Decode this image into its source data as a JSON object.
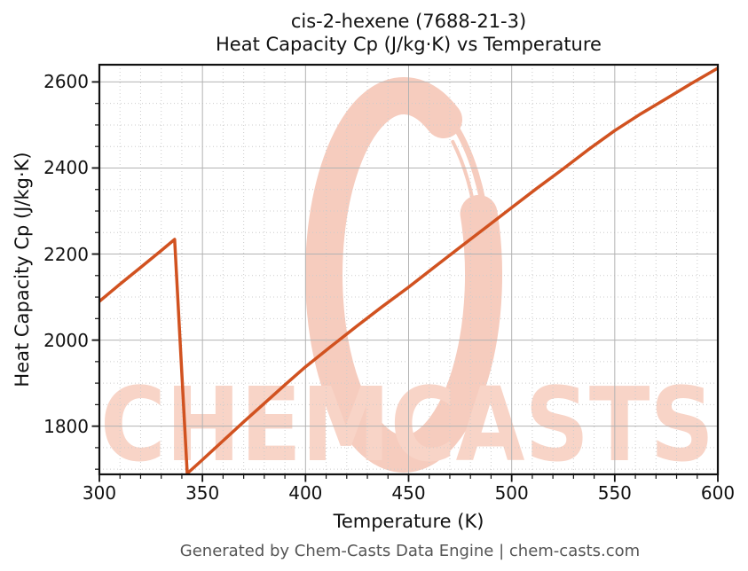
{
  "title": {
    "line1": "cis-2-hexene (7688-21-3)",
    "line2": "Heat Capacity Cp (J/kg·K) vs Temperature"
  },
  "footer": {
    "text": "Generated by Chem-Casts Data Engine | chem-casts.com"
  },
  "watermark": {
    "text": "CHEMCASTS",
    "logo": "paint-stroke-ring-c",
    "text_color": "#f8d4c7",
    "ring_color": "#f6ccbe"
  },
  "colors": {
    "line": "#d15220",
    "grid_major": "#b3b3b3",
    "grid_minor": "#cccccc",
    "spine": "#111111",
    "tick": "#111111",
    "footer_text": "#555555"
  },
  "chart_data": {
    "type": "line",
    "title": "cis-2-hexene (7688-21-3)",
    "subtitle": "Heat Capacity Cp (J/kg·K) vs Temperature",
    "xlabel": "Temperature (K)",
    "ylabel": "Heat Capacity Cp (J/kg·K)",
    "xlim": [
      300,
      600
    ],
    "ylim": [
      1688,
      2640
    ],
    "x_major_ticks": [
      300,
      350,
      400,
      450,
      500,
      550,
      600
    ],
    "x_minor_step": 10,
    "y_major_ticks": [
      1800,
      2000,
      2200,
      2400,
      2600
    ],
    "y_minor_step": 50,
    "grid": "major solid, minor dotted",
    "legend_position": "none",
    "series": [
      {
        "name": "Heat Capacity Cp (J/kg·K)",
        "color": "#d15220",
        "points": [
          [
            300,
            2090
          ],
          [
            310,
            2130
          ],
          [
            320,
            2169
          ],
          [
            330,
            2208
          ],
          [
            336.5,
            2234
          ],
          [
            342.6,
            1690
          ],
          [
            350,
            1722
          ],
          [
            360,
            1766
          ],
          [
            370,
            1810
          ],
          [
            380,
            1853
          ],
          [
            390,
            1896
          ],
          [
            400,
            1938
          ],
          [
            412,
            1984
          ],
          [
            425,
            2033
          ],
          [
            437,
            2077
          ],
          [
            450,
            2123
          ],
          [
            462,
            2168
          ],
          [
            475,
            2216
          ],
          [
            487,
            2260
          ],
          [
            500,
            2308
          ],
          [
            512,
            2352
          ],
          [
            525,
            2398
          ],
          [
            537,
            2442
          ],
          [
            550,
            2487
          ],
          [
            562,
            2524
          ],
          [
            575,
            2561
          ],
          [
            587,
            2596
          ],
          [
            600,
            2632
          ]
        ]
      }
    ]
  }
}
